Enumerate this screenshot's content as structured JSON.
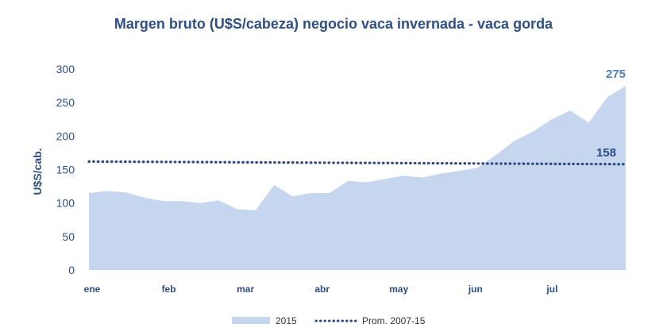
{
  "chart_data": {
    "type": "area",
    "title": "Margen bruto (U$S/cabeza) negocio vaca invernada - vaca gorda",
    "ylabel": "U$S/cab.",
    "xlabel": "",
    "ylim": [
      0,
      300
    ],
    "yticks": [
      "0",
      "50",
      "100",
      "150",
      "200",
      "250",
      "300"
    ],
    "xtick_labels": [
      "ene",
      "feb",
      "mar",
      "abr",
      "may",
      "jun",
      "jul"
    ],
    "grid": false,
    "legend_position": "bottom",
    "series": [
      {
        "name": "2015",
        "kind": "area",
        "color": "#C6D6EE",
        "values": [
          115,
          118,
          116,
          108,
          103,
          103,
          100,
          104,
          91,
          89,
          127,
          110,
          115,
          115,
          133,
          131,
          136,
          141,
          138,
          144,
          148,
          153,
          172,
          193,
          207,
          225,
          238,
          220,
          258,
          275
        ]
      },
      {
        "name": "Prom. 2007-15",
        "kind": "line",
        "style": "dotted",
        "color": "#2B4A7F",
        "start_value": 162,
        "end_value": 158
      }
    ],
    "annotations": [
      {
        "text": "275",
        "color": "#4F81BD"
      },
      {
        "text": "158",
        "color": "#2B4A7F"
      }
    ]
  }
}
